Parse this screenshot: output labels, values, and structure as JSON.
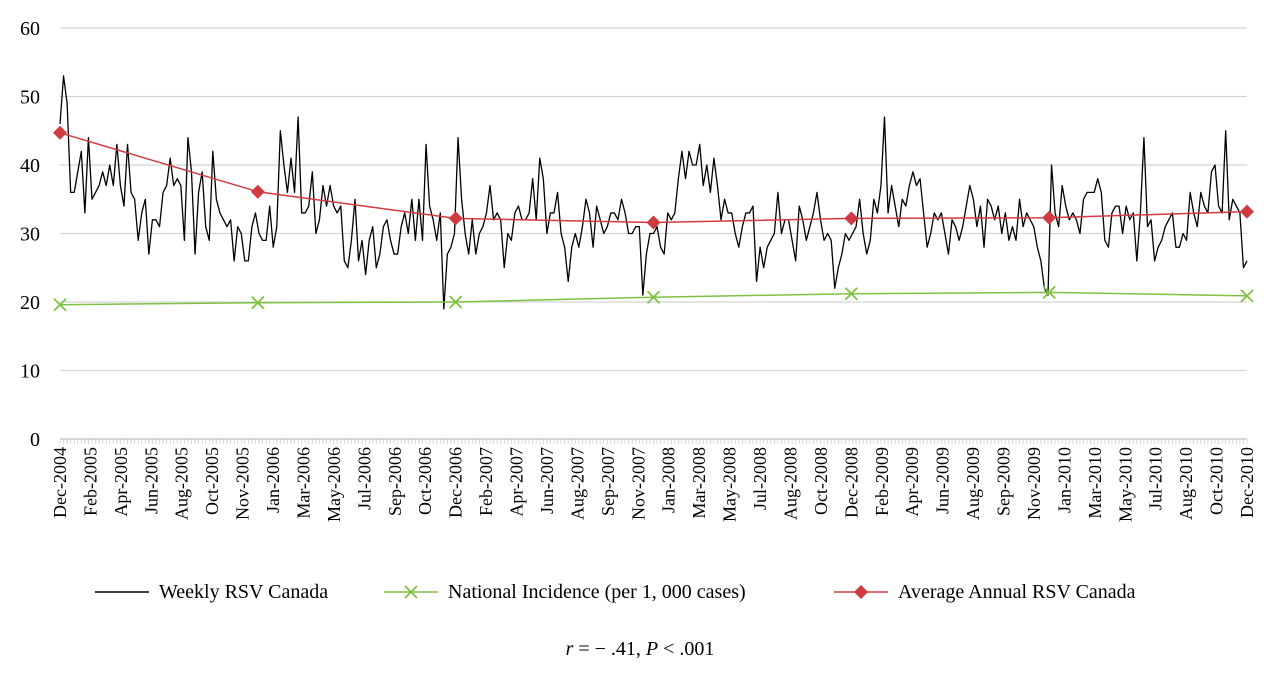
{
  "chart_data": {
    "type": "line",
    "title": "",
    "xlabel": "",
    "ylabel": "",
    "ylim": [
      0,
      60
    ],
    "yticks": [
      0,
      10,
      20,
      30,
      40,
      50,
      60
    ],
    "gridlines": true,
    "legend_position": "bottom",
    "x_tick_labels": [
      "Dec-2004",
      "Feb-2005",
      "Apr-2005",
      "Jun-2005",
      "Aug-2005",
      "Oct-2005",
      "Nov-2005",
      "Jan-2006",
      "Mar-2006",
      "May-2006",
      "Jul-2006",
      "Sep-2006",
      "Oct-2006",
      "Dec-2006",
      "Feb-2007",
      "Apr-2007",
      "Jun-2007",
      "Aug-2007",
      "Sep-2007",
      "Nov-2007",
      "Jan-2008",
      "Mar-2008",
      "May-2008",
      "Jul-2008",
      "Aug-2008",
      "Oct-2008",
      "Dec-2008",
      "Feb-2009",
      "Apr-2009",
      "Jun-2009",
      "Aug-2009",
      "Sep-2009",
      "Nov-2009",
      "Jan-2010",
      "Mar-2010",
      "May-2010",
      "Jul-2010",
      "Aug-2010",
      "Oct-2010",
      "Dec-2010"
    ],
    "series": [
      {
        "name": "Weekly RSV Canada",
        "color": "#000000",
        "marker": "none",
        "values": [
          46,
          53,
          49,
          36,
          36,
          39,
          42,
          33,
          44,
          35,
          36,
          37,
          39,
          37,
          40,
          37,
          43,
          37,
          34,
          43,
          36,
          35,
          29,
          33,
          35,
          27,
          32,
          32,
          31,
          36,
          37,
          41,
          37,
          38,
          37,
          29,
          44,
          39,
          27,
          36,
          39,
          31,
          29,
          42,
          35,
          33,
          32,
          31,
          32,
          26,
          31,
          30,
          26,
          26,
          31,
          33,
          30,
          29,
          29,
          34,
          28,
          31,
          45,
          40,
          36,
          41,
          36,
          47,
          33,
          33,
          34,
          39,
          30,
          32,
          37,
          34,
          37,
          34,
          33,
          34,
          26,
          25,
          29,
          35,
          26,
          29,
          24,
          29,
          31,
          25,
          27,
          31,
          32,
          29,
          27,
          27,
          31,
          33,
          30,
          35,
          29,
          35,
          29,
          43,
          34,
          32,
          29,
          33,
          19,
          27,
          28,
          30,
          44,
          35,
          30,
          27,
          32,
          27,
          30,
          31,
          33,
          37,
          32,
          33,
          32,
          25,
          30,
          29,
          33,
          34,
          32,
          32,
          33,
          38,
          32,
          41,
          38,
          30,
          33,
          33,
          36,
          30,
          28,
          23,
          28,
          30,
          28,
          31,
          35,
          33,
          28,
          34,
          32,
          30,
          31,
          33,
          33,
          32,
          35,
          33,
          30,
          30,
          31,
          31,
          21,
          27,
          30,
          30,
          31,
          28,
          27,
          33,
          32,
          33,
          38,
          42,
          38,
          42,
          40,
          40,
          43,
          37,
          40,
          36,
          41,
          37,
          32,
          35,
          33,
          33,
          30,
          28,
          31,
          33,
          33,
          34,
          23,
          28,
          25,
          28,
          29,
          30,
          36,
          30,
          32,
          32,
          29,
          26,
          34,
          32,
          29,
          31,
          33,
          36,
          32,
          29,
          30,
          29,
          22,
          25,
          27,
          30,
          29,
          30,
          31,
          35,
          30,
          27,
          29,
          35,
          33,
          37,
          47,
          33,
          37,
          34,
          31,
          35,
          34,
          37,
          39,
          37,
          38,
          33,
          28,
          30,
          33,
          32,
          33,
          30,
          27,
          32,
          31,
          29,
          31,
          34,
          37,
          35,
          31,
          34,
          28,
          35,
          34,
          32,
          34,
          30,
          33,
          29,
          31,
          29,
          35,
          31,
          33,
          32,
          31,
          28,
          26,
          22,
          21,
          40,
          33,
          31,
          37,
          34,
          32,
          33,
          32,
          30,
          35,
          36,
          36,
          36,
          38,
          36,
          29,
          28,
          33,
          34,
          34,
          30,
          34,
          32,
          33,
          26,
          33,
          44,
          31,
          32,
          26,
          28,
          29,
          31,
          32,
          33,
          28,
          28,
          30,
          29,
          36,
          33,
          31,
          36,
          34,
          33,
          39,
          40,
          34,
          33,
          45,
          32,
          35,
          34,
          33,
          25,
          26
        ]
      },
      {
        "name": "National Incidence (per 1, 000 cases)",
        "color": "#7dc242",
        "marker": "x",
        "values": [
          19.6,
          19.9,
          20.0,
          20.7,
          21.2,
          21.4,
          20.9
        ]
      },
      {
        "name": "Average Annual RSV Canada",
        "color": "#d23a42",
        "marker": "diamond",
        "values": [
          44.7,
          36.1,
          32.2,
          31.6,
          32.2,
          32.3,
          33.2
        ]
      }
    ],
    "annotation": {
      "r_symbol": "r",
      "r_text": " = − .41, ",
      "p_symbol": "P",
      "p_text": " < .001"
    }
  }
}
